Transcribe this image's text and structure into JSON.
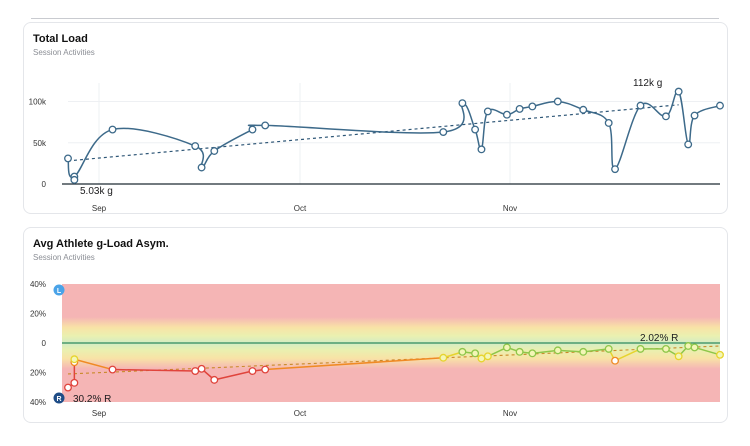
{
  "charts": [
    {
      "title": "Total Load",
      "subtitle": "Session Activities",
      "chart_data": {
        "type": "line",
        "ylim": [
          0,
          120000
        ],
        "yticks": [
          0,
          50000,
          100000
        ],
        "ytick_labels": [
          "0",
          "50k",
          "100k"
        ],
        "xlim": [
          0,
          96
        ],
        "xticks": [
          5,
          35,
          66
        ],
        "xtick_labels": [
          "Sep",
          "Oct",
          "Nov"
        ],
        "x_axis_type": "days since Aug 27",
        "grid": true,
        "line_color": "#3d6a8a",
        "trend": {
          "from": [
            0,
            28000
          ],
          "to": [
            96,
            96000
          ]
        },
        "annotations": [
          {
            "text": "5.03k g",
            "x": 1,
            "y": 5030,
            "anchor": "below"
          },
          {
            "text": "112k g",
            "x": 91.5,
            "y": 112000,
            "anchor": "above"
          }
        ],
        "points": [
          [
            0,
            31000
          ],
          [
            1,
            9000
          ],
          [
            1,
            5030
          ],
          [
            7,
            66000
          ],
          [
            20,
            46000
          ],
          [
            21,
            20000
          ],
          [
            23,
            40000
          ],
          [
            29,
            66000
          ],
          [
            31,
            71000
          ],
          [
            59,
            63000
          ],
          [
            62,
            98000
          ],
          [
            64,
            66000
          ],
          [
            65,
            42000
          ],
          [
            66,
            88000
          ],
          [
            69,
            84000
          ],
          [
            71,
            91000
          ],
          [
            73,
            94000
          ],
          [
            77,
            100000
          ],
          [
            81,
            90000
          ],
          [
            85,
            74000
          ],
          [
            86,
            18000
          ],
          [
            90,
            95000
          ],
          [
            94,
            82000
          ],
          [
            96,
            112000
          ],
          [
            97.5,
            48000
          ],
          [
            98.5,
            83000
          ],
          [
            102.5,
            95000
          ]
        ]
      }
    },
    {
      "title": "Avg Athlete g-Load Asym.",
      "subtitle": "Session Activities",
      "chart_data": {
        "type": "line",
        "ylim": [
          -40,
          40
        ],
        "yticks": [
          40,
          20,
          0,
          -20,
          -40
        ],
        "ytick_labels": [
          "40%",
          "20%",
          "0",
          "20%",
          "40%"
        ],
        "xtick_labels": [
          "Sep",
          "Oct",
          "Nov"
        ],
        "side_badges": {
          "top": "L",
          "bottom": "R"
        },
        "zero_line_color": "#2f8a5e",
        "trend": {
          "from": [
            0,
            -21
          ],
          "to": [
            102.5,
            -2
          ]
        },
        "annotations": [
          {
            "text": "30.2% R",
            "x": 1,
            "y": -30.2,
            "anchor": "right"
          },
          {
            "text": "2.02% R",
            "x": 96,
            "y": -2.02,
            "anchor": "above"
          }
        ],
        "points": [
          [
            0,
            -30.2
          ],
          [
            1,
            -27
          ],
          [
            1,
            -13
          ],
          [
            1,
            -11
          ],
          [
            7,
            -18
          ],
          [
            20,
            -19
          ],
          [
            21,
            -17.5
          ],
          [
            23,
            -25
          ],
          [
            29,
            -19
          ],
          [
            31,
            -18
          ],
          [
            59,
            -10
          ],
          [
            62,
            -6
          ],
          [
            64,
            -7
          ],
          [
            65,
            -10.5
          ],
          [
            66,
            -9
          ],
          [
            69,
            -3
          ],
          [
            71,
            -6
          ],
          [
            73,
            -7
          ],
          [
            77,
            -5
          ],
          [
            81,
            -6
          ],
          [
            85,
            -4
          ],
          [
            86,
            -12
          ],
          [
            90,
            -4
          ],
          [
            94,
            -4
          ],
          [
            96,
            -9
          ],
          [
            97.5,
            -2.02
          ],
          [
            98.5,
            -3
          ],
          [
            102.5,
            -8
          ]
        ]
      }
    }
  ]
}
